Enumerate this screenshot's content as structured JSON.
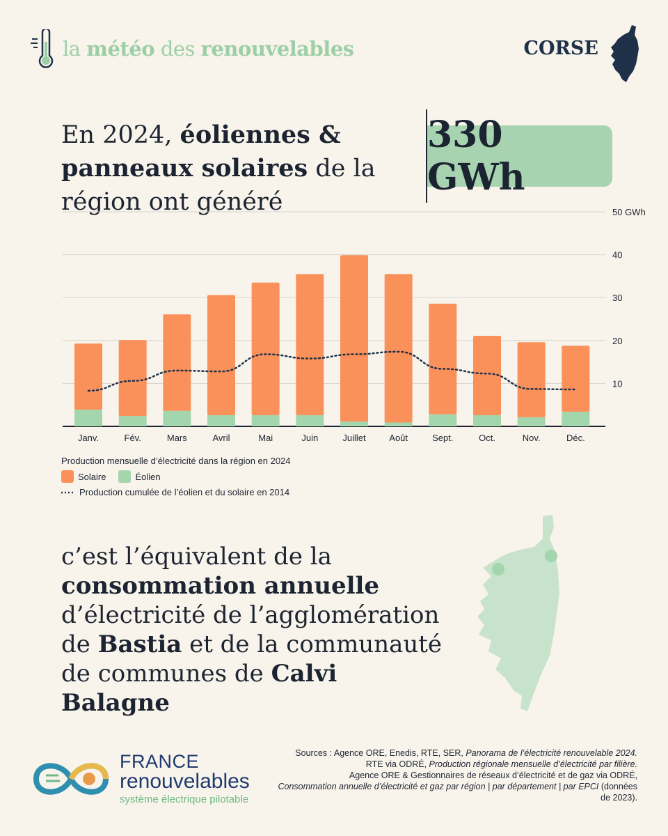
{
  "header": {
    "brand_pre": "la ",
    "brand_bold1": "météo",
    "brand_mid": " des ",
    "brand_bold2": "renouvelables",
    "region": "CORSE"
  },
  "headline": {
    "p1": "En 2024, ",
    "b1": "éoliennes & panneaux solaires",
    "p2": " de la région ont généré",
    "kpi": "330 GWh"
  },
  "chart_data": {
    "type": "bar",
    "stacked": true,
    "title": "Production mensuelle d’électricité dans la région en 2024",
    "categories": [
      "Janv.",
      "Fév.",
      "Mars",
      "Avril",
      "Mai",
      "Juin",
      "Juillet",
      "Août",
      "Sept.",
      "Oct.",
      "Nov.",
      "Déc."
    ],
    "series": [
      {
        "name": "Éolien",
        "color": "#a3d6ad",
        "values": [
          3.9,
          2.4,
          3.6,
          2.6,
          2.6,
          2.6,
          1.1,
          0.9,
          2.8,
          2.6,
          2.1,
          3.4
        ]
      },
      {
        "name": "Solaire",
        "color": "#fa915a",
        "values": [
          15.4,
          17.7,
          22.5,
          28.0,
          30.9,
          32.9,
          38.8,
          34.6,
          25.8,
          18.5,
          17.5,
          15.4
        ]
      }
    ],
    "line": {
      "name": "Production cumulée de l’éolien et du solaire en 2014",
      "color": "#1f3148",
      "values": [
        8.3,
        10.6,
        13.0,
        12.8,
        16.8,
        15.8,
        16.8,
        17.4,
        13.4,
        12.3,
        8.7,
        8.6
      ]
    },
    "ylim": [
      0,
      50
    ],
    "yticks": [
      10,
      20,
      30,
      40,
      50
    ],
    "ytick_labels": [
      "10",
      "20",
      "30",
      "40",
      "50 GWh"
    ],
    "ylabel": "GWh",
    "grid": true
  },
  "legend": {
    "title": "Production mensuelle d’électricité dans la région en 2024",
    "solar": "Solaire",
    "wind": "Éolien",
    "line": "Production cumulée de l’éolien et du solaire en 2014"
  },
  "equivalence": {
    "t1": "c’est l’équivalent de la ",
    "b1": "consommation annuelle",
    "t2": " d’électricité de l’agglomération de ",
    "b2": "Bastia",
    "t3": " et de la communauté de communes de ",
    "b3": "Calvi Balagne"
  },
  "logo": {
    "line1": "FRANCE",
    "line2": "renouvelables",
    "line3": "système électrique pilotable"
  },
  "sources": {
    "s1": "Sources : Agence ORE, Enedis, RTE, SER, ",
    "s1i": "Panorama de l’électricité renouvelable 2024.",
    "s2": "RTE via ODRÉ, ",
    "s2i": "Production régionale mensuelle d’électricité par filière.",
    "s3": "Agence ORE & Gestionnaires de réseaux d’électricité et de gaz via ODRÉ,",
    "s4i": "Consommation annuelle d’électricité et gaz par région | par département | par EPCI",
    "s4": " (données de 2023)."
  }
}
